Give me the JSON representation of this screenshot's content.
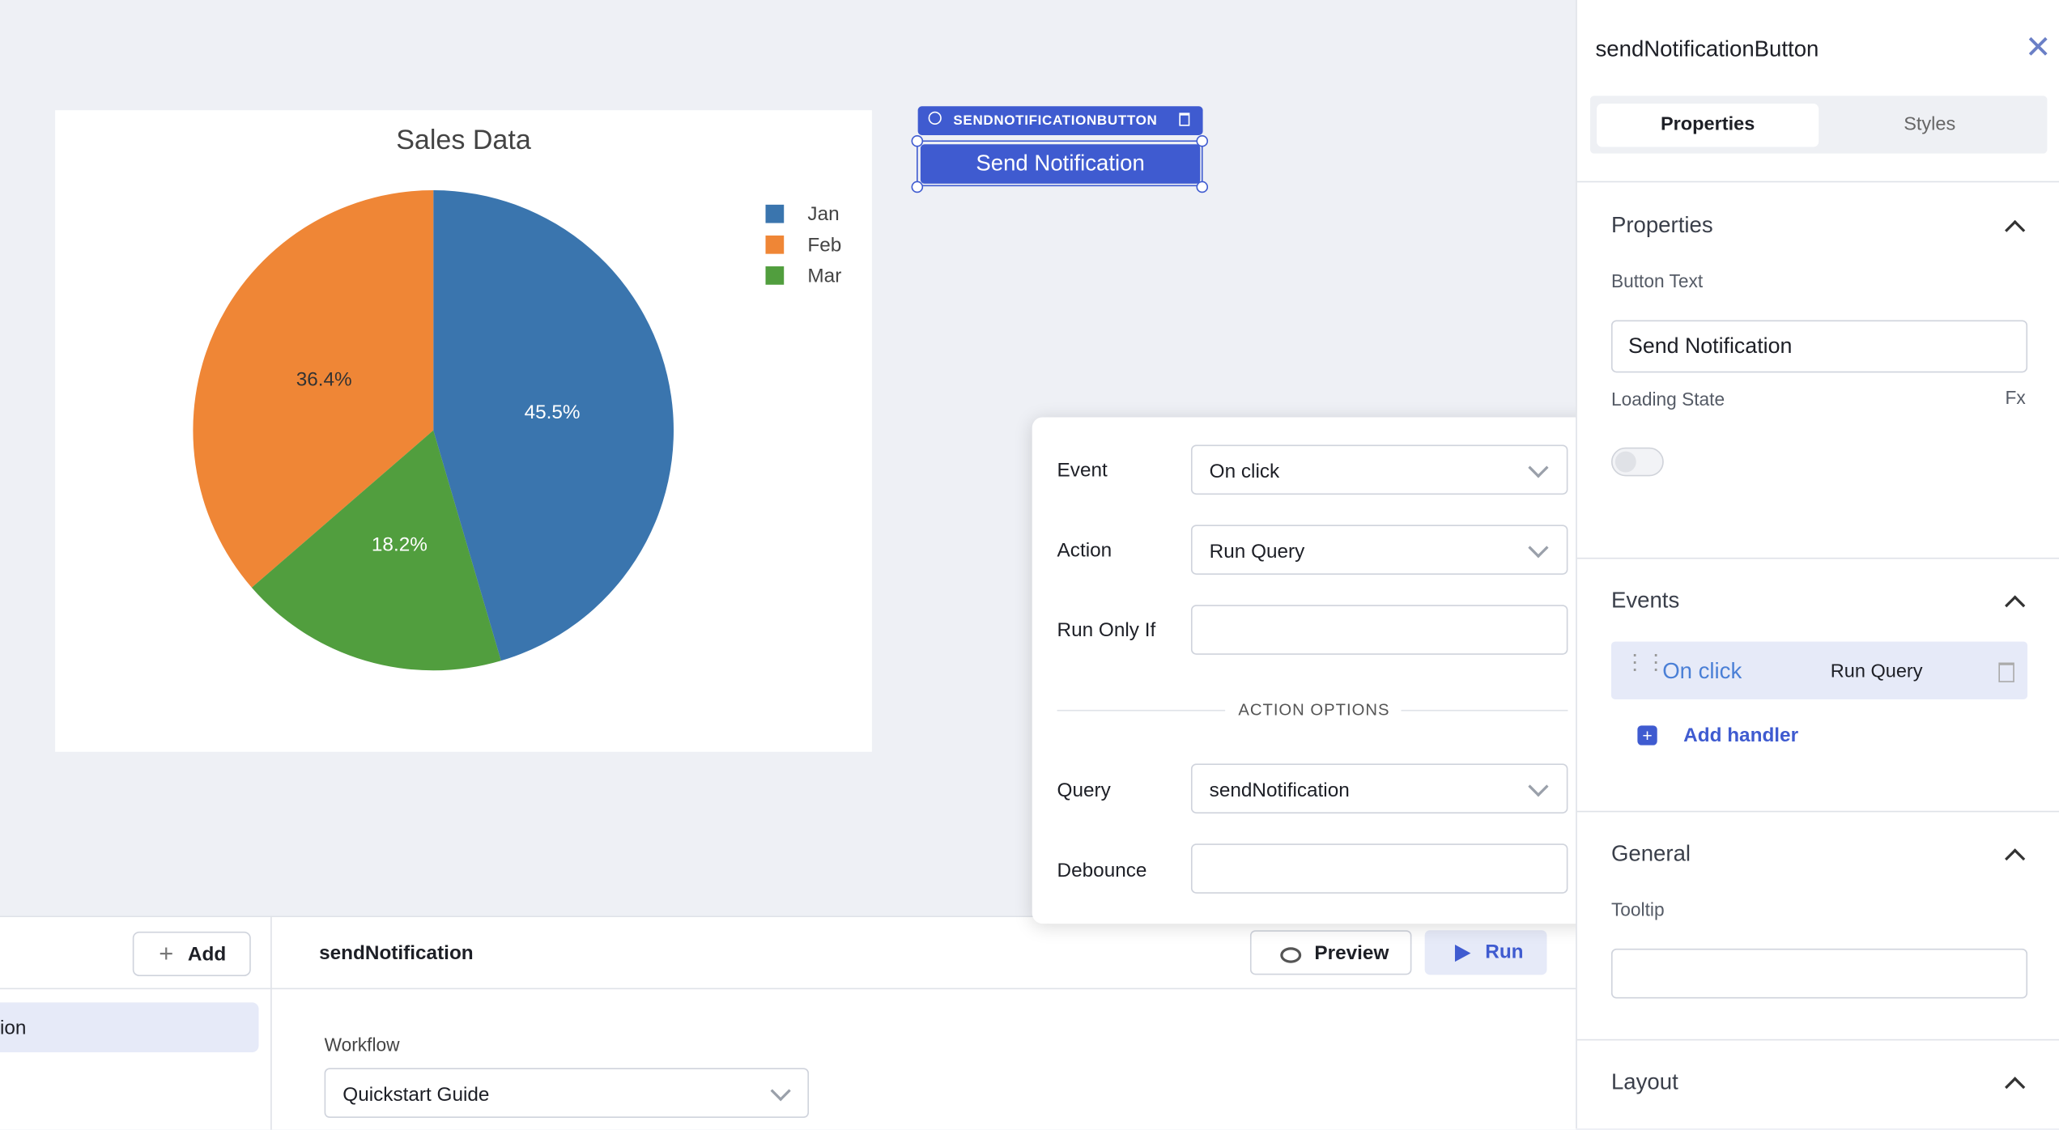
{
  "chart_data": {
    "type": "pie",
    "title": "Sales Data",
    "categories": [
      "Jan",
      "Feb",
      "Mar"
    ],
    "values": [
      45.5,
      36.4,
      18.2
    ],
    "value_labels": [
      "45.5%",
      "36.4%",
      "18.2%"
    ],
    "colors": [
      "#3a75ae",
      "#ef8636",
      "#519e3e"
    ],
    "direction": "counterclockwise",
    "legend": "top-right"
  },
  "widget": {
    "tag": "SENDNOTIFICATIONBUTTON",
    "button": "Send Notification"
  },
  "inspector": {
    "title": "sendNotificationButton",
    "tabs": [
      "Properties",
      "Styles"
    ],
    "properties": {
      "heading": "Properties",
      "button_text_label": "Button Text",
      "button_text": "Send Notification",
      "loading_label": "Loading State",
      "fx": "Fx"
    },
    "events": {
      "heading": "Events",
      "event": "On click",
      "action": "Run Query",
      "add": "Add handler"
    },
    "general": {
      "heading": "General",
      "tooltip_label": "Tooltip"
    },
    "layout": {
      "heading": "Layout"
    }
  },
  "popover": {
    "event_label": "Event",
    "event": "On click",
    "action_label": "Action",
    "action": "Run Query",
    "run_only_if": "Run Only If",
    "options": "ACTION OPTIONS",
    "query_label": "Query",
    "query": "sendNotification",
    "debounce": "Debounce"
  },
  "query_panel": {
    "add": "Add",
    "item": "ion",
    "name": "sendNotification",
    "preview": "Preview",
    "run": "Run",
    "workflow_label": "Workflow",
    "workflow": "Quickstart Guide"
  }
}
